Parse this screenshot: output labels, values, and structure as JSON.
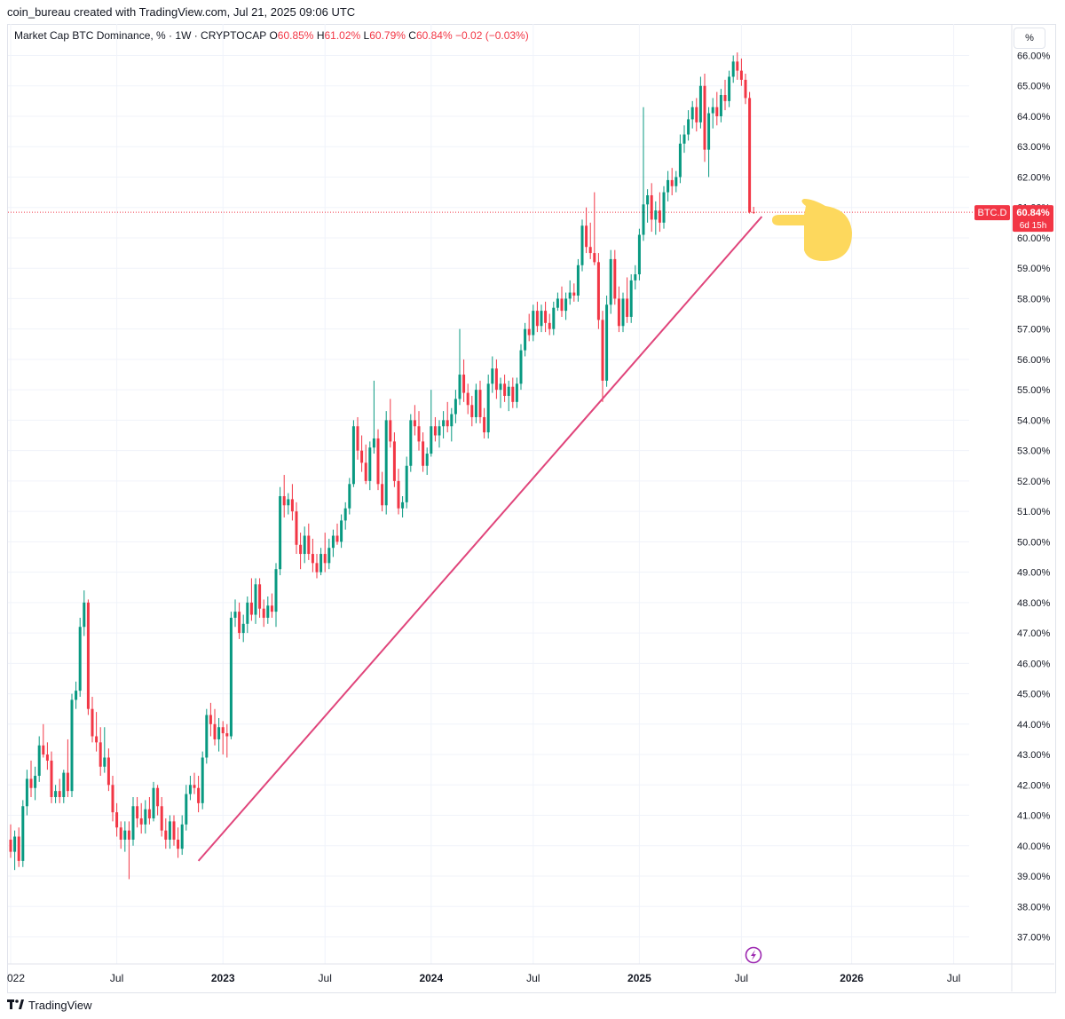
{
  "attribution": "coin_bureau created with TradingView.com, Jul 21, 2025 09:06 UTC",
  "legend": {
    "prefix": "Market Cap BTC Dominance, % · 1W · CRYPTOCAP",
    "o_label": "O",
    "o_value": "60.85%",
    "h_label": "H",
    "h_value": "61.02%",
    "l_label": "L",
    "l_value": "60.79%",
    "c_label": "C",
    "c_value": "60.84%",
    "change": "−0.02 (−0.03%)"
  },
  "unit_button": "%",
  "price_label": {
    "symbol": "BTC.D",
    "value": "60.84%",
    "countdown": "6d 15h"
  },
  "footer_brand": "TradingView",
  "colors": {
    "up": "#089981",
    "down": "#f23645",
    "trendline": "#e0457b",
    "hand": "#fdd85d",
    "current_line": "#f23645"
  },
  "icons": {
    "replay": "lightning-bolt-icon",
    "annotation": "pointing-hand-icon",
    "brand": "tradingview-logo-icon"
  },
  "chart_data": {
    "type": "candlestick",
    "interval": "1W",
    "ylim": [
      36.5,
      66.5
    ],
    "y_ticks": [
      "37.00%",
      "38.00%",
      "39.00%",
      "40.00%",
      "41.00%",
      "42.00%",
      "43.00%",
      "44.00%",
      "45.00%",
      "46.00%",
      "47.00%",
      "48.00%",
      "49.00%",
      "50.00%",
      "51.00%",
      "52.00%",
      "53.00%",
      "54.00%",
      "55.00%",
      "56.00%",
      "57.00%",
      "58.00%",
      "59.00%",
      "60.00%",
      "61.00%",
      "62.00%",
      "63.00%",
      "64.00%",
      "65.00%",
      "66.00%"
    ],
    "x_ticks": [
      {
        "label": "022",
        "week": 0
      },
      {
        "label": "Jul",
        "week": 26
      },
      {
        "label": "2023",
        "week": 52
      },
      {
        "label": "Jul",
        "week": 77
      },
      {
        "label": "2024",
        "week": 103
      },
      {
        "label": "Jul",
        "week": 128
      },
      {
        "label": "2025",
        "week": 154
      },
      {
        "label": "Jul",
        "week": 179
      },
      {
        "label": "2026",
        "week": 206
      },
      {
        "label": "Jul",
        "week": 231
      }
    ],
    "current_value": 60.84,
    "trendline": {
      "from": {
        "week": 46,
        "value": 39.5
      },
      "to": {
        "week": 184,
        "value": 60.7
      }
    },
    "candles": [
      {
        "o": 40.2,
        "h": 40.7,
        "l": 39.6,
        "c": 39.8
      },
      {
        "o": 39.8,
        "h": 40.5,
        "l": 39.2,
        "c": 40.3
      },
      {
        "o": 40.3,
        "h": 40.6,
        "l": 39.3,
        "c": 39.5
      },
      {
        "o": 39.5,
        "h": 41.5,
        "l": 39.3,
        "c": 41.3
      },
      {
        "o": 41.3,
        "h": 42.5,
        "l": 41.0,
        "c": 42.2
      },
      {
        "o": 42.2,
        "h": 42.8,
        "l": 41.6,
        "c": 41.9
      },
      {
        "o": 41.9,
        "h": 42.6,
        "l": 41.5,
        "c": 42.3
      },
      {
        "o": 42.3,
        "h": 43.6,
        "l": 42.1,
        "c": 43.3
      },
      {
        "o": 43.3,
        "h": 44.0,
        "l": 42.9,
        "c": 43.0
      },
      {
        "o": 43.0,
        "h": 43.4,
        "l": 42.5,
        "c": 42.8
      },
      {
        "o": 42.8,
        "h": 43.1,
        "l": 41.4,
        "c": 41.6
      },
      {
        "o": 41.6,
        "h": 42.0,
        "l": 41.4,
        "c": 41.8
      },
      {
        "o": 41.8,
        "h": 42.2,
        "l": 41.4,
        "c": 41.6
      },
      {
        "o": 41.6,
        "h": 42.5,
        "l": 41.4,
        "c": 42.4
      },
      {
        "o": 42.4,
        "h": 43.5,
        "l": 41.6,
        "c": 41.8
      },
      {
        "o": 41.8,
        "h": 45.0,
        "l": 41.6,
        "c": 44.8
      },
      {
        "o": 44.8,
        "h": 45.4,
        "l": 44.5,
        "c": 45.1
      },
      {
        "o": 45.1,
        "h": 47.5,
        "l": 44.9,
        "c": 47.2
      },
      {
        "o": 47.2,
        "h": 48.4,
        "l": 46.9,
        "c": 48.0
      },
      {
        "o": 48.0,
        "h": 48.1,
        "l": 44.3,
        "c": 44.5
      },
      {
        "o": 44.5,
        "h": 44.9,
        "l": 43.4,
        "c": 43.6
      },
      {
        "o": 43.6,
        "h": 44.4,
        "l": 43.1,
        "c": 43.4
      },
      {
        "o": 43.4,
        "h": 43.9,
        "l": 42.3,
        "c": 42.6
      },
      {
        "o": 42.6,
        "h": 43.9,
        "l": 42.4,
        "c": 42.9
      },
      {
        "o": 42.9,
        "h": 43.2,
        "l": 41.8,
        "c": 42.0
      },
      {
        "o": 42.0,
        "h": 42.3,
        "l": 40.8,
        "c": 41.1
      },
      {
        "o": 41.1,
        "h": 41.4,
        "l": 40.3,
        "c": 40.6
      },
      {
        "o": 40.6,
        "h": 40.8,
        "l": 39.9,
        "c": 40.2
      },
      {
        "o": 40.2,
        "h": 40.8,
        "l": 39.8,
        "c": 40.5
      },
      {
        "o": 40.5,
        "h": 40.8,
        "l": 38.9,
        "c": 40.2
      },
      {
        "o": 40.2,
        "h": 41.6,
        "l": 40.0,
        "c": 41.3
      },
      {
        "o": 41.3,
        "h": 41.6,
        "l": 40.6,
        "c": 40.9
      },
      {
        "o": 40.9,
        "h": 41.4,
        "l": 40.4,
        "c": 40.7
      },
      {
        "o": 40.7,
        "h": 41.5,
        "l": 40.4,
        "c": 41.2
      },
      {
        "o": 41.2,
        "h": 41.6,
        "l": 40.7,
        "c": 40.9
      },
      {
        "o": 40.9,
        "h": 42.1,
        "l": 40.8,
        "c": 41.9
      },
      {
        "o": 41.9,
        "h": 42.0,
        "l": 41.0,
        "c": 41.3
      },
      {
        "o": 41.3,
        "h": 41.6,
        "l": 40.3,
        "c": 40.5
      },
      {
        "o": 40.5,
        "h": 40.9,
        "l": 39.9,
        "c": 40.2
      },
      {
        "o": 40.2,
        "h": 41.0,
        "l": 39.9,
        "c": 40.8
      },
      {
        "o": 40.8,
        "h": 41.0,
        "l": 40.0,
        "c": 40.2
      },
      {
        "o": 40.2,
        "h": 40.6,
        "l": 39.6,
        "c": 39.9
      },
      {
        "o": 39.9,
        "h": 41.0,
        "l": 39.7,
        "c": 40.7
      },
      {
        "o": 40.7,
        "h": 42.0,
        "l": 40.5,
        "c": 41.7
      },
      {
        "o": 41.7,
        "h": 42.3,
        "l": 41.5,
        "c": 42.0
      },
      {
        "o": 42.0,
        "h": 42.4,
        "l": 41.7,
        "c": 41.9
      },
      {
        "o": 41.9,
        "h": 42.3,
        "l": 41.1,
        "c": 41.4
      },
      {
        "o": 41.4,
        "h": 43.1,
        "l": 41.2,
        "c": 42.9
      },
      {
        "o": 42.9,
        "h": 44.5,
        "l": 42.7,
        "c": 44.3
      },
      {
        "o": 44.3,
        "h": 44.7,
        "l": 43.6,
        "c": 44.0
      },
      {
        "o": 44.0,
        "h": 44.5,
        "l": 43.3,
        "c": 43.5
      },
      {
        "o": 43.5,
        "h": 44.2,
        "l": 43.1,
        "c": 43.9
      },
      {
        "o": 43.9,
        "h": 44.1,
        "l": 43.0,
        "c": 43.7
      },
      {
        "o": 43.7,
        "h": 44.0,
        "l": 42.9,
        "c": 43.6
      },
      {
        "o": 43.6,
        "h": 47.7,
        "l": 43.5,
        "c": 47.5
      },
      {
        "o": 47.5,
        "h": 48.1,
        "l": 47.2,
        "c": 47.7
      },
      {
        "o": 47.7,
        "h": 48.0,
        "l": 46.8,
        "c": 47.0
      },
      {
        "o": 47.0,
        "h": 47.6,
        "l": 46.7,
        "c": 47.3
      },
      {
        "o": 47.3,
        "h": 48.2,
        "l": 47.0,
        "c": 48.0
      },
      {
        "o": 48.0,
        "h": 48.8,
        "l": 47.4,
        "c": 47.6
      },
      {
        "o": 47.6,
        "h": 48.8,
        "l": 47.3,
        "c": 48.6
      },
      {
        "o": 48.6,
        "h": 48.8,
        "l": 47.5,
        "c": 47.8
      },
      {
        "o": 47.8,
        "h": 48.1,
        "l": 47.2,
        "c": 47.5
      },
      {
        "o": 47.5,
        "h": 48.2,
        "l": 47.3,
        "c": 47.9
      },
      {
        "o": 47.9,
        "h": 48.3,
        "l": 47.5,
        "c": 47.7
      },
      {
        "o": 47.7,
        "h": 49.3,
        "l": 47.2,
        "c": 49.1
      },
      {
        "o": 49.1,
        "h": 51.8,
        "l": 48.9,
        "c": 51.5
      },
      {
        "o": 51.5,
        "h": 52.2,
        "l": 50.8,
        "c": 51.2
      },
      {
        "o": 51.2,
        "h": 51.6,
        "l": 50.9,
        "c": 51.4
      },
      {
        "o": 51.4,
        "h": 51.9,
        "l": 50.7,
        "c": 51.0
      },
      {
        "o": 51.0,
        "h": 51.3,
        "l": 49.6,
        "c": 49.9
      },
      {
        "o": 49.9,
        "h": 50.3,
        "l": 49.1,
        "c": 49.6
      },
      {
        "o": 49.6,
        "h": 50.5,
        "l": 49.3,
        "c": 50.2
      },
      {
        "o": 50.2,
        "h": 50.6,
        "l": 49.4,
        "c": 49.6
      },
      {
        "o": 49.6,
        "h": 50.1,
        "l": 49.0,
        "c": 49.3
      },
      {
        "o": 49.3,
        "h": 49.6,
        "l": 48.8,
        "c": 49.0
      },
      {
        "o": 49.0,
        "h": 49.8,
        "l": 48.9,
        "c": 49.6
      },
      {
        "o": 49.6,
        "h": 50.3,
        "l": 49.0,
        "c": 49.3
      },
      {
        "o": 49.3,
        "h": 50.1,
        "l": 49.1,
        "c": 49.8
      },
      {
        "o": 49.8,
        "h": 50.4,
        "l": 49.5,
        "c": 50.2
      },
      {
        "o": 50.2,
        "h": 50.6,
        "l": 49.9,
        "c": 50.0
      },
      {
        "o": 50.0,
        "h": 50.9,
        "l": 49.8,
        "c": 50.7
      },
      {
        "o": 50.7,
        "h": 51.3,
        "l": 50.4,
        "c": 51.1
      },
      {
        "o": 51.1,
        "h": 52.1,
        "l": 50.9,
        "c": 51.9
      },
      {
        "o": 51.9,
        "h": 54.0,
        "l": 51.8,
        "c": 53.8
      },
      {
        "o": 53.8,
        "h": 54.1,
        "l": 52.7,
        "c": 53.0
      },
      {
        "o": 53.0,
        "h": 53.5,
        "l": 52.3,
        "c": 52.6
      },
      {
        "o": 52.6,
        "h": 53.2,
        "l": 51.9,
        "c": 52.0
      },
      {
        "o": 52.0,
        "h": 53.3,
        "l": 51.7,
        "c": 53.1
      },
      {
        "o": 53.1,
        "h": 55.3,
        "l": 52.9,
        "c": 53.4
      },
      {
        "o": 53.4,
        "h": 53.7,
        "l": 51.7,
        "c": 51.9
      },
      {
        "o": 51.9,
        "h": 52.3,
        "l": 51.0,
        "c": 51.2
      },
      {
        "o": 51.2,
        "h": 54.3,
        "l": 50.9,
        "c": 54.0
      },
      {
        "o": 54.0,
        "h": 54.7,
        "l": 53.1,
        "c": 53.3
      },
      {
        "o": 53.3,
        "h": 53.6,
        "l": 51.8,
        "c": 52.0
      },
      {
        "o": 52.0,
        "h": 52.4,
        "l": 50.9,
        "c": 51.1
      },
      {
        "o": 51.1,
        "h": 51.5,
        "l": 50.8,
        "c": 51.3
      },
      {
        "o": 51.3,
        "h": 52.8,
        "l": 51.1,
        "c": 52.5
      },
      {
        "o": 52.5,
        "h": 54.2,
        "l": 52.3,
        "c": 54.0
      },
      {
        "o": 54.0,
        "h": 54.5,
        "l": 53.5,
        "c": 53.8
      },
      {
        "o": 53.8,
        "h": 54.3,
        "l": 53.0,
        "c": 53.3
      },
      {
        "o": 53.3,
        "h": 53.6,
        "l": 52.3,
        "c": 52.5
      },
      {
        "o": 52.5,
        "h": 53.1,
        "l": 52.2,
        "c": 52.9
      },
      {
        "o": 52.9,
        "h": 55.0,
        "l": 52.8,
        "c": 53.8
      },
      {
        "o": 53.8,
        "h": 54.1,
        "l": 53.3,
        "c": 53.5
      },
      {
        "o": 53.5,
        "h": 54.0,
        "l": 53.1,
        "c": 53.8
      },
      {
        "o": 53.8,
        "h": 54.3,
        "l": 53.4,
        "c": 54.0
      },
      {
        "o": 54.0,
        "h": 54.6,
        "l": 53.6,
        "c": 53.8
      },
      {
        "o": 53.8,
        "h": 54.4,
        "l": 53.3,
        "c": 54.2
      },
      {
        "o": 54.2,
        "h": 55.0,
        "l": 53.9,
        "c": 54.7
      },
      {
        "o": 54.7,
        "h": 57.0,
        "l": 54.5,
        "c": 55.5
      },
      {
        "o": 55.5,
        "h": 56.0,
        "l": 54.6,
        "c": 54.9
      },
      {
        "o": 54.9,
        "h": 55.2,
        "l": 54.2,
        "c": 54.5
      },
      {
        "o": 54.5,
        "h": 54.8,
        "l": 53.8,
        "c": 54.1
      },
      {
        "o": 54.1,
        "h": 55.2,
        "l": 53.9,
        "c": 55.0
      },
      {
        "o": 55.0,
        "h": 55.3,
        "l": 53.9,
        "c": 54.1
      },
      {
        "o": 54.1,
        "h": 54.4,
        "l": 53.4,
        "c": 53.6
      },
      {
        "o": 53.6,
        "h": 55.5,
        "l": 53.4,
        "c": 55.2
      },
      {
        "o": 55.2,
        "h": 56.1,
        "l": 54.9,
        "c": 55.7
      },
      {
        "o": 55.7,
        "h": 56.0,
        "l": 54.7,
        "c": 55.0
      },
      {
        "o": 55.0,
        "h": 55.4,
        "l": 54.4,
        "c": 55.2
      },
      {
        "o": 55.2,
        "h": 55.5,
        "l": 54.6,
        "c": 54.8
      },
      {
        "o": 54.8,
        "h": 55.3,
        "l": 54.3,
        "c": 55.1
      },
      {
        "o": 55.1,
        "h": 55.4,
        "l": 54.4,
        "c": 54.6
      },
      {
        "o": 54.6,
        "h": 55.4,
        "l": 54.4,
        "c": 55.2
      },
      {
        "o": 55.2,
        "h": 56.5,
        "l": 55.0,
        "c": 56.3
      },
      {
        "o": 56.3,
        "h": 57.2,
        "l": 56.1,
        "c": 57.0
      },
      {
        "o": 57.0,
        "h": 57.5,
        "l": 56.6,
        "c": 56.8
      },
      {
        "o": 56.8,
        "h": 57.8,
        "l": 56.6,
        "c": 57.6
      },
      {
        "o": 57.6,
        "h": 57.9,
        "l": 56.9,
        "c": 57.1
      },
      {
        "o": 57.1,
        "h": 57.8,
        "l": 56.9,
        "c": 57.6
      },
      {
        "o": 57.6,
        "h": 57.9,
        "l": 56.9,
        "c": 57.2
      },
      {
        "o": 57.2,
        "h": 57.5,
        "l": 56.8,
        "c": 57.0
      },
      {
        "o": 57.0,
        "h": 57.9,
        "l": 56.8,
        "c": 57.7
      },
      {
        "o": 57.7,
        "h": 58.2,
        "l": 57.6,
        "c": 58.0
      },
      {
        "o": 58.0,
        "h": 58.4,
        "l": 57.4,
        "c": 57.6
      },
      {
        "o": 57.6,
        "h": 58.2,
        "l": 57.3,
        "c": 58.0
      },
      {
        "o": 58.0,
        "h": 58.6,
        "l": 57.8,
        "c": 58.2
      },
      {
        "o": 58.2,
        "h": 58.5,
        "l": 57.9,
        "c": 58.1
      },
      {
        "o": 58.1,
        "h": 59.3,
        "l": 57.9,
        "c": 59.1
      },
      {
        "o": 59.1,
        "h": 60.6,
        "l": 58.9,
        "c": 60.4
      },
      {
        "o": 60.4,
        "h": 61.0,
        "l": 59.5,
        "c": 59.7
      },
      {
        "o": 59.7,
        "h": 60.5,
        "l": 59.3,
        "c": 59.5
      },
      {
        "o": 59.5,
        "h": 61.5,
        "l": 59.1,
        "c": 59.2
      },
      {
        "o": 59.2,
        "h": 59.5,
        "l": 57.0,
        "c": 57.3
      },
      {
        "o": 57.3,
        "h": 57.6,
        "l": 54.6,
        "c": 55.3
      },
      {
        "o": 55.3,
        "h": 58.1,
        "l": 55.1,
        "c": 57.8
      },
      {
        "o": 57.8,
        "h": 59.6,
        "l": 57.5,
        "c": 59.3
      },
      {
        "o": 59.3,
        "h": 59.6,
        "l": 57.8,
        "c": 58.0
      },
      {
        "o": 58.0,
        "h": 58.4,
        "l": 56.9,
        "c": 57.1
      },
      {
        "o": 57.1,
        "h": 58.2,
        "l": 56.9,
        "c": 58.0
      },
      {
        "o": 58.0,
        "h": 58.7,
        "l": 57.2,
        "c": 57.4
      },
      {
        "o": 57.4,
        "h": 58.8,
        "l": 57.2,
        "c": 58.6
      },
      {
        "o": 58.6,
        "h": 59.1,
        "l": 58.3,
        "c": 58.8
      },
      {
        "o": 58.8,
        "h": 60.3,
        "l": 58.6,
        "c": 60.1
      },
      {
        "o": 60.1,
        "h": 64.3,
        "l": 59.9,
        "c": 61.1
      },
      {
        "o": 61.1,
        "h": 61.6,
        "l": 60.5,
        "c": 61.4
      },
      {
        "o": 61.4,
        "h": 61.8,
        "l": 60.2,
        "c": 60.6
      },
      {
        "o": 60.6,
        "h": 61.2,
        "l": 60.1,
        "c": 60.9
      },
      {
        "o": 60.9,
        "h": 61.5,
        "l": 60.2,
        "c": 60.5
      },
      {
        "o": 60.5,
        "h": 61.7,
        "l": 60.3,
        "c": 61.5
      },
      {
        "o": 61.5,
        "h": 62.2,
        "l": 61.2,
        "c": 61.9
      },
      {
        "o": 61.9,
        "h": 62.3,
        "l": 61.4,
        "c": 61.7
      },
      {
        "o": 61.7,
        "h": 62.2,
        "l": 61.5,
        "c": 62.0
      },
      {
        "o": 62.0,
        "h": 63.4,
        "l": 61.8,
        "c": 63.1
      },
      {
        "o": 63.1,
        "h": 63.7,
        "l": 62.8,
        "c": 63.4
      },
      {
        "o": 63.4,
        "h": 64.2,
        "l": 63.2,
        "c": 63.9
      },
      {
        "o": 63.9,
        "h": 64.5,
        "l": 63.6,
        "c": 64.3
      },
      {
        "o": 64.3,
        "h": 64.6,
        "l": 63.5,
        "c": 63.8
      },
      {
        "o": 63.8,
        "h": 65.3,
        "l": 63.6,
        "c": 65.0
      },
      {
        "o": 65.0,
        "h": 65.4,
        "l": 62.5,
        "c": 62.9
      },
      {
        "o": 62.9,
        "h": 64.3,
        "l": 62.0,
        "c": 64.1
      },
      {
        "o": 64.1,
        "h": 64.6,
        "l": 63.6,
        "c": 64.3
      },
      {
        "o": 64.3,
        "h": 64.8,
        "l": 63.7,
        "c": 64.0
      },
      {
        "o": 64.0,
        "h": 64.9,
        "l": 63.8,
        "c": 64.7
      },
      {
        "o": 64.7,
        "h": 65.2,
        "l": 64.2,
        "c": 64.5
      },
      {
        "o": 64.5,
        "h": 65.5,
        "l": 64.3,
        "c": 65.3
      },
      {
        "o": 65.3,
        "h": 66.0,
        "l": 65.1,
        "c": 65.8
      },
      {
        "o": 65.8,
        "h": 66.1,
        "l": 65.2,
        "c": 65.5
      },
      {
        "o": 65.5,
        "h": 65.9,
        "l": 65.0,
        "c": 65.2
      },
      {
        "o": 65.2,
        "h": 65.4,
        "l": 64.4,
        "c": 64.6
      },
      {
        "o": 64.6,
        "h": 64.8,
        "l": 60.8,
        "c": 60.85
      },
      {
        "o": 60.85,
        "h": 61.02,
        "l": 60.79,
        "c": 60.84
      }
    ]
  }
}
